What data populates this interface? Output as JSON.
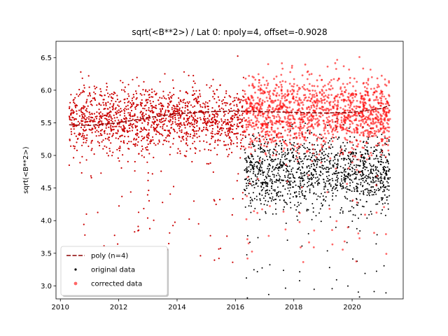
{
  "chart_data": {
    "type": "scatter",
    "title": "sqrt(<B**2>) / Lat 0: npoly=4, offset=-0.9028",
    "xlabel": "",
    "ylabel": "sqrt(<B**2>)",
    "xlim": [
      2009.85,
      2021.75
    ],
    "ylim": [
      2.8,
      6.75
    ],
    "x_ticks": [
      2010,
      2012,
      2014,
      2016,
      2018,
      2020
    ],
    "x_tick_labels": [
      "2010",
      "2012",
      "2014",
      "2016",
      "2018",
      "2020"
    ],
    "y_ticks": [
      3.0,
      3.5,
      4.0,
      4.5,
      5.0,
      5.5,
      6.0,
      6.5
    ],
    "y_tick_labels": [
      "3.0",
      "3.5",
      "4.0",
      "4.5",
      "5.0",
      "5.5",
      "6.0",
      "6.5"
    ],
    "grid": false,
    "legend_position": "lower-left",
    "colors": {
      "poly": "#8b0000",
      "original": "#000000",
      "corrected": "#ff0000",
      "early_data": "#cc0000"
    },
    "series": [
      {
        "name": "poly (n=4)",
        "kind": "line",
        "style": "dashed",
        "x": [
          2010.3,
          2011.0,
          2012.0,
          2013.0,
          2014.0,
          2015.0,
          2016.0,
          2017.0,
          2018.0,
          2019.0,
          2020.0,
          2021.0,
          2021.3
        ],
        "y": [
          5.47,
          5.46,
          5.5,
          5.58,
          5.64,
          5.67,
          5.68,
          5.67,
          5.66,
          5.65,
          5.66,
          5.72,
          5.77
        ]
      },
      {
        "name": "original data",
        "kind": "scatter",
        "marker": "point",
        "x_range": [
          2016.3,
          2021.3
        ],
        "y_center": 4.75,
        "y_spread": 0.28,
        "count": 1400
      },
      {
        "name": "corrected data",
        "kind": "scatter",
        "marker": "circle",
        "x_range": [
          2016.3,
          2021.3
        ],
        "y_center": 5.65,
        "y_spread": 0.28,
        "count": 1400
      }
    ],
    "unlabeled_series": [
      {
        "kind": "scatter",
        "x_range": [
          2010.3,
          2016.3
        ],
        "y_center": 5.55,
        "y_spread": 0.25,
        "count": 1500
      }
    ]
  }
}
